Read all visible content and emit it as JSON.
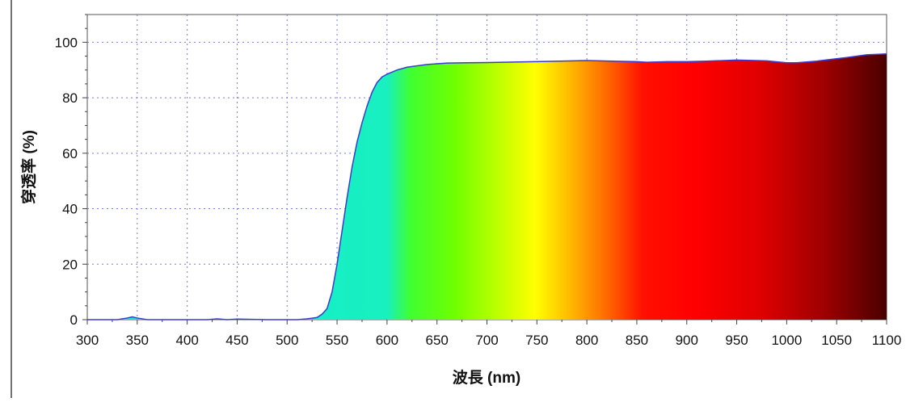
{
  "chart_data": {
    "type": "area",
    "xlabel": "波長 (nm)",
    "ylabel": "穿透率 (%)",
    "xlim": [
      300,
      1100
    ],
    "ylim": [
      0,
      110
    ],
    "x_ticks": [
      300,
      350,
      400,
      450,
      500,
      550,
      600,
      650,
      700,
      750,
      800,
      850,
      900,
      950,
      1000,
      1050,
      1100
    ],
    "y_ticks": [
      0,
      20,
      40,
      60,
      80,
      100
    ],
    "grid": true,
    "legend": "none",
    "fill": "visible-spectrum gradient",
    "line_color": "#3a3ad0",
    "x": [
      300,
      330,
      340,
      345,
      350,
      360,
      380,
      420,
      430,
      440,
      450,
      480,
      500,
      510,
      520,
      530,
      535,
      540,
      545,
      550,
      555,
      560,
      565,
      570,
      575,
      580,
      585,
      590,
      595,
      600,
      610,
      620,
      640,
      660,
      680,
      700,
      750,
      800,
      850,
      860,
      880,
      900,
      920,
      950,
      980,
      1000,
      1010,
      1030,
      1060,
      1080,
      1100
    ],
    "y": [
      0,
      0,
      0.6,
      1.0,
      0.6,
      0,
      0,
      0,
      0.3,
      0,
      0.2,
      0,
      0,
      0,
      0.3,
      0.8,
      2,
      4,
      10,
      20,
      32,
      44,
      55,
      64,
      71,
      77,
      82,
      85.5,
      87.5,
      88.5,
      90,
      91,
      92,
      92.5,
      92.6,
      92.7,
      93,
      93.4,
      93,
      92.8,
      93,
      93,
      93.2,
      93.6,
      93.3,
      92.6,
      92.6,
      93.2,
      94.5,
      95.5,
      95.8
    ]
  }
}
